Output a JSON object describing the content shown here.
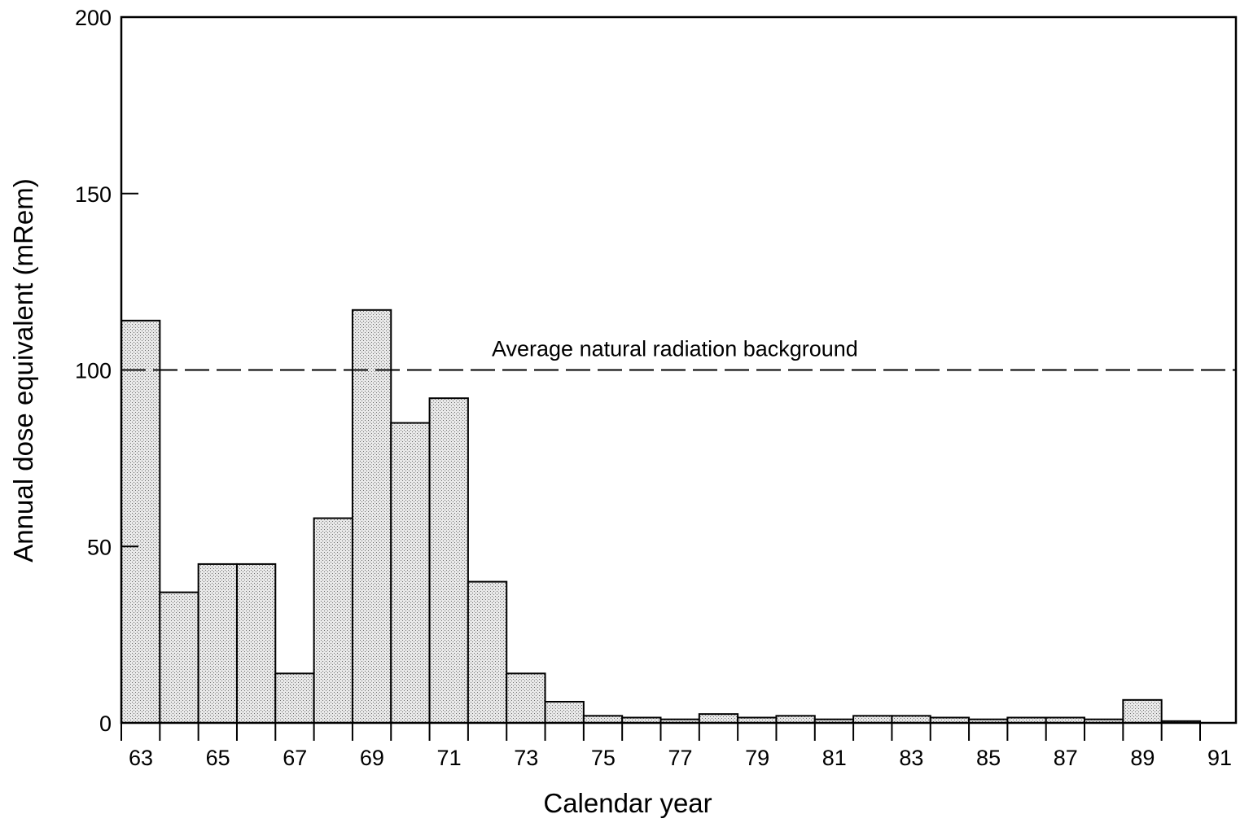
{
  "chart_data": {
    "type": "bar",
    "title": "",
    "xlabel": "Calendar year",
    "ylabel": "Annual dose equivalent (mRem)",
    "x_tick_labels": [
      "63",
      "65",
      "67",
      "69",
      "71",
      "73",
      "75",
      "77",
      "79",
      "81",
      "83",
      "85",
      "87",
      "89",
      "91"
    ],
    "y_tick_labels": [
      "0",
      "50",
      "100",
      "150",
      "200"
    ],
    "ylim": [
      0,
      200
    ],
    "xlim": [
      1963,
      1991
    ],
    "grid": false,
    "legend": "none",
    "categories": [
      "1963",
      "1964",
      "1965",
      "1966",
      "1967",
      "1968",
      "1969",
      "1970",
      "1971",
      "1972",
      "1973",
      "1974",
      "1975",
      "1976",
      "1977",
      "1978",
      "1979",
      "1980",
      "1981",
      "1982",
      "1983",
      "1984",
      "1985",
      "1986",
      "1987",
      "1988",
      "1989",
      "1990"
    ],
    "values": [
      114,
      37,
      45,
      45,
      14,
      58,
      117,
      85,
      92,
      40,
      14,
      6,
      2,
      1.5,
      1,
      2.5,
      1.5,
      2,
      1,
      2,
      2,
      1.5,
      1,
      1.5,
      1.5,
      1,
      6.5,
      0.5
    ],
    "bar_color": "#d2d2d2",
    "reference_line": {
      "value": 100,
      "label": "Average natural radiation background",
      "style": "dashed"
    }
  }
}
